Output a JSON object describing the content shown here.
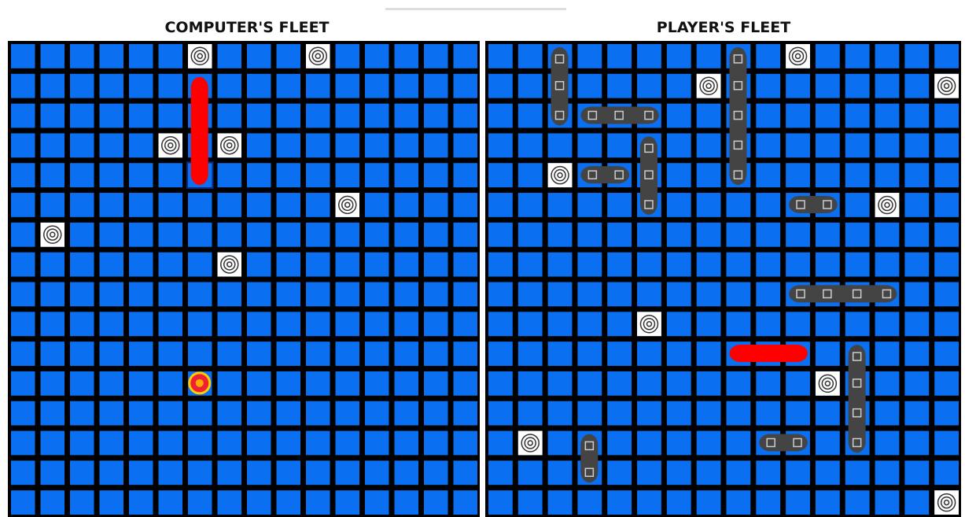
{
  "boards": [
    {
      "title": "COMPUTER'S FLEET"
    },
    {
      "title": "PLAYER'S FLEET"
    }
  ]
}
